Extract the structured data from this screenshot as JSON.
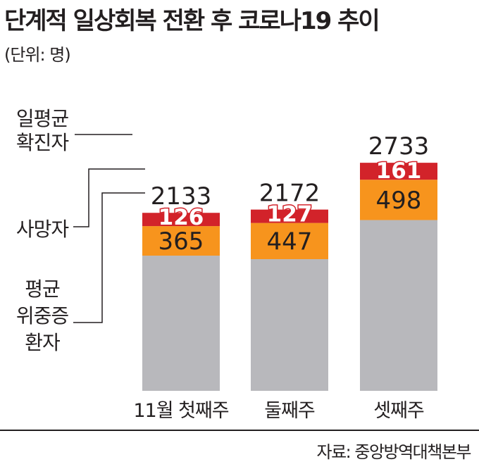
{
  "title": "단계적 일상회복 전환 후 코로나19 추이",
  "unit_label": "(단위: 명)",
  "source": "자료: 중앙방역대책본부",
  "colors": {
    "severe": "#b8b8bc",
    "deaths": "#f7941d",
    "cases": "#d2232a",
    "text": "#231f20"
  },
  "legend": {
    "cases": [
      "일평균",
      "확진자"
    ],
    "deaths": [
      "사망자"
    ],
    "severe": [
      "평균",
      "위중증",
      "환자"
    ]
  },
  "chart_data": {
    "type": "bar",
    "stacked": true,
    "categories": [
      "11월 첫째주",
      "둘째주",
      "셋째주"
    ],
    "series": [
      {
        "name": "평균 위중증 환자",
        "key": "severe",
        "values": [
          365,
          447,
          498
        ],
        "labeled_values": [
          365,
          447,
          498
        ]
      },
      {
        "name": "사망자",
        "key": "deaths",
        "values": [
          126,
          127,
          161
        ]
      },
      {
        "name": "일평균 확진자",
        "key": "cases",
        "values": [
          2133,
          2172,
          2733
        ]
      }
    ]
  }
}
